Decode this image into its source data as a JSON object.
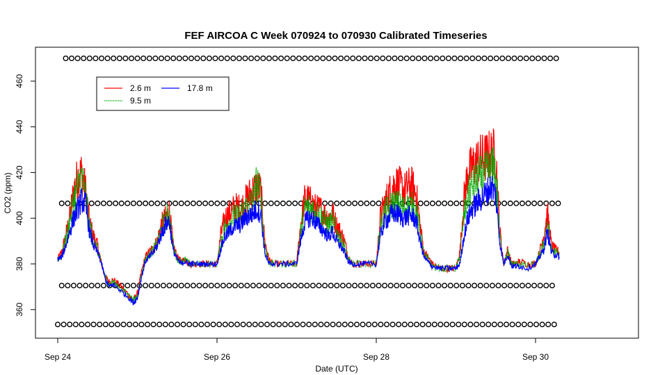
{
  "chart_data": {
    "type": "line",
    "title": "FEF AIRCOA C  Week 070924 to 070930  Calibrated Timeseries",
    "xlabel": "Date (UTC)",
    "ylabel": "CO2 (ppm)",
    "x_unit": "days",
    "xlim": [
      0,
      7.3
    ],
    "ylim": [
      348,
      471
    ],
    "x_ticks": [
      {
        "value": 0,
        "label": "Sep 24"
      },
      {
        "value": 2,
        "label": "Sep 26"
      },
      {
        "value": 4,
        "label": "Sep 28"
      },
      {
        "value": 6,
        "label": "Sep 30"
      }
    ],
    "y_ticks": [
      {
        "value": 360,
        "label": "360"
      },
      {
        "value": 380,
        "label": "380"
      },
      {
        "value": 400,
        "label": "400"
      },
      {
        "value": 420,
        "label": "420"
      },
      {
        "value": 440,
        "label": "440"
      },
      {
        "value": 460,
        "label": "460"
      }
    ],
    "grid": false,
    "legend_position": "top-left",
    "series": [
      {
        "name": "2.6 m",
        "color": "#ff0000",
        "line_type": "solid",
        "x": [
          0.0,
          0.05,
          0.1,
          0.15,
          0.2,
          0.25,
          0.3,
          0.35,
          0.4,
          0.45,
          0.5,
          0.55,
          0.6,
          0.65,
          0.7,
          0.8,
          0.9,
          0.95,
          1.0,
          1.05,
          1.1,
          1.15,
          1.2,
          1.25,
          1.3,
          1.35,
          1.4,
          1.45,
          1.5,
          1.55,
          1.6,
          1.65,
          1.7,
          1.8,
          1.9,
          2.0,
          2.05,
          2.1,
          2.15,
          2.2,
          2.25,
          2.3,
          2.35,
          2.4,
          2.45,
          2.5,
          2.55,
          2.6,
          2.65,
          2.7,
          2.8,
          2.9,
          3.0,
          3.05,
          3.1,
          3.15,
          3.2,
          3.25,
          3.3,
          3.35,
          3.4,
          3.45,
          3.5,
          3.55,
          3.6,
          3.65,
          3.7,
          3.8,
          3.9,
          4.0,
          4.05,
          4.1,
          4.15,
          4.2,
          4.25,
          4.3,
          4.35,
          4.4,
          4.45,
          4.5,
          4.55,
          4.6,
          4.65,
          4.7,
          4.8,
          4.9,
          5.0,
          5.05,
          5.1,
          5.15,
          5.2,
          5.25,
          5.3,
          5.35,
          5.4,
          5.45,
          5.5,
          5.55,
          5.6,
          5.65,
          5.7,
          5.75,
          5.8,
          5.9,
          6.0,
          6.05,
          6.1,
          6.15,
          6.2,
          6.25,
          6.3
        ],
        "values": [
          382,
          385,
          392,
          400,
          412,
          418,
          420,
          412,
          398,
          392,
          388,
          380,
          374,
          372,
          373,
          370,
          366,
          364,
          367,
          376,
          383,
          385,
          387,
          390,
          397,
          400,
          403,
          388,
          383,
          381,
          382,
          380,
          380,
          380,
          380,
          380,
          393,
          400,
          402,
          404,
          405,
          404,
          407,
          410,
          412,
          414,
          412,
          390,
          382,
          380,
          380,
          380,
          380,
          397,
          408,
          408,
          406,
          404,
          404,
          402,
          400,
          402,
          397,
          394,
          390,
          383,
          380,
          380,
          380,
          380,
          400,
          406,
          410,
          414,
          415,
          414,
          412,
          414,
          414,
          411,
          397,
          385,
          383,
          380,
          378,
          378,
          378,
          385,
          408,
          420,
          422,
          424,
          426,
          426,
          427,
          428,
          428,
          395,
          380,
          386,
          380,
          380,
          381,
          380,
          380,
          385,
          392,
          402,
          388,
          386,
          385
        ]
      },
      {
        "name": "9.5 m",
        "color": "#00aa00",
        "line_type": "dotted",
        "x": [
          0.0,
          0.05,
          0.1,
          0.15,
          0.2,
          0.25,
          0.3,
          0.35,
          0.4,
          0.45,
          0.5,
          0.55,
          0.6,
          0.65,
          0.7,
          0.8,
          0.9,
          0.95,
          1.0,
          1.05,
          1.1,
          1.15,
          1.2,
          1.25,
          1.3,
          1.35,
          1.4,
          1.45,
          1.5,
          1.55,
          1.6,
          1.65,
          1.7,
          1.8,
          1.9,
          2.0,
          2.05,
          2.1,
          2.15,
          2.2,
          2.25,
          2.3,
          2.35,
          2.4,
          2.45,
          2.5,
          2.55,
          2.6,
          2.65,
          2.7,
          2.8,
          2.9,
          3.0,
          3.05,
          3.1,
          3.15,
          3.2,
          3.25,
          3.3,
          3.35,
          3.4,
          3.45,
          3.5,
          3.55,
          3.6,
          3.65,
          3.7,
          3.8,
          3.9,
          4.0,
          4.05,
          4.1,
          4.15,
          4.2,
          4.25,
          4.3,
          4.35,
          4.4,
          4.45,
          4.5,
          4.55,
          4.6,
          4.65,
          4.7,
          4.8,
          4.9,
          5.0,
          5.05,
          5.1,
          5.15,
          5.2,
          5.25,
          5.3,
          5.35,
          5.4,
          5.45,
          5.5,
          5.55,
          5.6,
          5.65,
          5.7,
          5.75,
          5.8,
          5.9,
          6.0,
          6.05,
          6.1,
          6.15,
          6.2,
          6.25,
          6.3
        ],
        "values": [
          382,
          384,
          390,
          398,
          408,
          414,
          418,
          410,
          396,
          390,
          386,
          380,
          374,
          371,
          372,
          369,
          366,
          364,
          366,
          375,
          382,
          384,
          386,
          389,
          395,
          399,
          402,
          387,
          382,
          381,
          382,
          380,
          380,
          380,
          380,
          380,
          390,
          396,
          398,
          400,
          401,
          401,
          404,
          406,
          408,
          416,
          410,
          388,
          381,
          380,
          380,
          380,
          380,
          394,
          404,
          405,
          404,
          402,
          401,
          399,
          397,
          399,
          394,
          391,
          388,
          382,
          380,
          380,
          380,
          380,
          396,
          402,
          404,
          406,
          406,
          405,
          404,
          405,
          405,
          403,
          394,
          384,
          382,
          379,
          378,
          378,
          378,
          383,
          400,
          410,
          414,
          416,
          418,
          419,
          420,
          422,
          420,
          392,
          380,
          385,
          380,
          380,
          380,
          379,
          380,
          384,
          388,
          398,
          386,
          385,
          384
        ]
      },
      {
        "name": "17.8 m",
        "color": "#0000ff",
        "line_type": "solid",
        "x": [
          0.0,
          0.05,
          0.1,
          0.15,
          0.2,
          0.25,
          0.3,
          0.35,
          0.4,
          0.45,
          0.5,
          0.55,
          0.6,
          0.65,
          0.7,
          0.8,
          0.9,
          0.95,
          1.0,
          1.05,
          1.1,
          1.15,
          1.2,
          1.25,
          1.3,
          1.35,
          1.4,
          1.45,
          1.5,
          1.55,
          1.6,
          1.65,
          1.7,
          1.8,
          1.9,
          2.0,
          2.05,
          2.1,
          2.15,
          2.2,
          2.25,
          2.3,
          2.35,
          2.4,
          2.45,
          2.5,
          2.55,
          2.6,
          2.65,
          2.7,
          2.8,
          2.9,
          3.0,
          3.05,
          3.1,
          3.15,
          3.2,
          3.25,
          3.3,
          3.35,
          3.4,
          3.45,
          3.5,
          3.55,
          3.6,
          3.65,
          3.7,
          3.8,
          3.9,
          4.0,
          4.05,
          4.1,
          4.15,
          4.2,
          4.25,
          4.3,
          4.35,
          4.4,
          4.45,
          4.5,
          4.55,
          4.6,
          4.65,
          4.7,
          4.8,
          4.9,
          5.0,
          5.05,
          5.1,
          5.15,
          5.2,
          5.25,
          5.3,
          5.35,
          5.4,
          5.45,
          5.5,
          5.55,
          5.6,
          5.65,
          5.7,
          5.75,
          5.8,
          5.9,
          6.0,
          6.05,
          6.1,
          6.15,
          6.2,
          6.25,
          6.3
        ],
        "values": [
          382,
          383,
          388,
          394,
          400,
          404,
          408,
          406,
          394,
          388,
          385,
          380,
          373,
          370,
          371,
          368,
          365,
          363,
          365,
          374,
          381,
          383,
          385,
          388,
          393,
          397,
          399,
          386,
          382,
          380,
          381,
          380,
          380,
          380,
          380,
          380,
          387,
          392,
          394,
          396,
          397,
          397,
          400,
          401,
          402,
          404,
          402,
          385,
          380,
          380,
          380,
          380,
          380,
          390,
          398,
          400,
          400,
          398,
          396,
          394,
          392,
          394,
          390,
          388,
          385,
          381,
          380,
          380,
          380,
          380,
          392,
          398,
          400,
          402,
          402,
          401,
          400,
          401,
          401,
          399,
          390,
          383,
          381,
          379,
          378,
          378,
          378,
          380,
          392,
          400,
          404,
          406,
          408,
          410,
          412,
          414,
          410,
          390,
          380,
          384,
          379,
          379,
          379,
          378,
          380,
          383,
          386,
          394,
          385,
          384,
          383
        ]
      }
    ],
    "marker_rows": [
      {
        "y": 470,
        "x_start": 0.1,
        "x_end": 6.3
      },
      {
        "y": 406.5,
        "x_start": 0.05,
        "x_end": 6.3
      },
      {
        "y": 370.5,
        "x_start": 0.05,
        "x_end": 6.25
      },
      {
        "y": 353.5,
        "x_start": 0.0,
        "x_end": 6.25
      }
    ]
  }
}
